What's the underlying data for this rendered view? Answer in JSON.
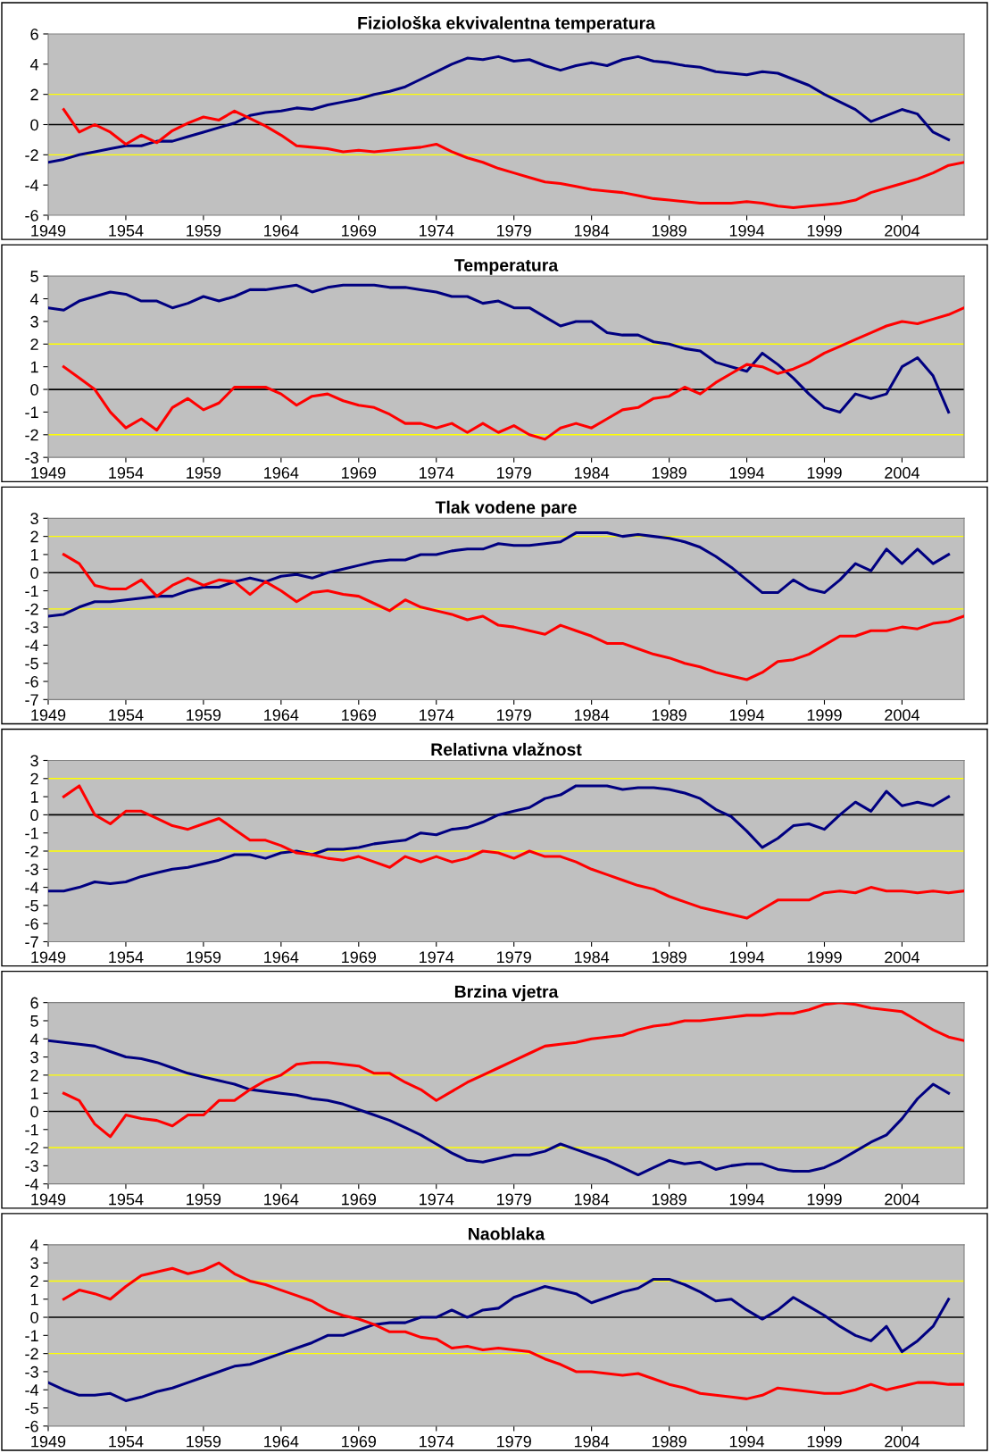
{
  "chart_data": [
    {
      "type": "line",
      "title": "Fiziološka ekvivalentna temperatura",
      "x": [
        1949,
        1950,
        1951,
        1952,
        1953,
        1954,
        1955,
        1956,
        1957,
        1958,
        1959,
        1960,
        1961,
        1962,
        1963,
        1964,
        1965,
        1966,
        1967,
        1968,
        1969,
        1970,
        1971,
        1972,
        1973,
        1974,
        1975,
        1976,
        1977,
        1978,
        1979,
        1980,
        1981,
        1982,
        1983,
        1984,
        1985,
        1986,
        1987,
        1988,
        1989,
        1990,
        1991,
        1992,
        1993,
        1994,
        1995,
        1996,
        1997,
        1998,
        1999,
        2000,
        2001,
        2002,
        2003,
        2004,
        2005,
        2006,
        2007,
        2008
      ],
      "xlim": [
        1949,
        2008
      ],
      "xticks": [
        1949,
        1954,
        1959,
        1964,
        1969,
        1974,
        1979,
        1984,
        1989,
        1994,
        1999,
        2004
      ],
      "ylim": [
        -6,
        6
      ],
      "yticks": [
        -6,
        -4,
        -2,
        0,
        2,
        4,
        6
      ],
      "ref_lines": [
        {
          "axis": "y",
          "value": 2,
          "color": "#ffff00"
        },
        {
          "axis": "y",
          "value": 0,
          "color": "#000000"
        },
        {
          "axis": "y",
          "value": -2,
          "color": "#ffff00"
        }
      ],
      "series": [
        {
          "color": "#000080",
          "values": [
            -2.5,
            -2.3,
            -2.0,
            -1.8,
            -1.6,
            -1.4,
            -1.4,
            -1.1,
            -1.1,
            -0.8,
            -0.5,
            -0.2,
            0.1,
            0.6,
            0.8,
            0.9,
            1.1,
            1.0,
            1.3,
            1.5,
            1.7,
            2.0,
            2.2,
            2.5,
            3.0,
            3.5,
            4.0,
            4.4,
            4.3,
            4.5,
            4.2,
            4.3,
            3.9,
            3.6,
            3.9,
            4.1,
            3.9,
            4.3,
            4.5,
            4.2,
            4.1,
            3.9,
            3.8,
            3.5,
            3.4,
            3.3,
            3.5,
            3.4,
            3.0,
            2.6,
            2.0,
            1.5,
            1.0,
            0.2,
            0.6,
            1.0,
            0.7,
            -0.5,
            -1.0,
            null
          ]
        },
        {
          "color": "#ff0000",
          "values": [
            null,
            1.0,
            -0.5,
            0.0,
            -0.5,
            -1.3,
            -0.7,
            -1.2,
            -0.4,
            0.1,
            0.5,
            0.3,
            0.9,
            0.4,
            -0.1,
            -0.7,
            -1.4,
            -1.5,
            -1.6,
            -1.8,
            -1.7,
            -1.8,
            -1.7,
            -1.6,
            -1.5,
            -1.3,
            -1.8,
            -2.2,
            -2.5,
            -2.9,
            -3.2,
            -3.5,
            -3.8,
            -3.9,
            -4.1,
            -4.3,
            -4.4,
            -4.5,
            -4.7,
            -4.9,
            -5.0,
            -5.1,
            -5.2,
            -5.2,
            -5.2,
            -5.1,
            -5.2,
            -5.4,
            -5.5,
            -5.4,
            -5.3,
            -5.2,
            -5.0,
            -4.5,
            -4.2,
            -3.9,
            -3.6,
            -3.2,
            -2.7,
            -2.5
          ]
        }
      ]
    },
    {
      "type": "line",
      "title": "Temperatura",
      "x": [
        1949,
        1950,
        1951,
        1952,
        1953,
        1954,
        1955,
        1956,
        1957,
        1958,
        1959,
        1960,
        1961,
        1962,
        1963,
        1964,
        1965,
        1966,
        1967,
        1968,
        1969,
        1970,
        1971,
        1972,
        1973,
        1974,
        1975,
        1976,
        1977,
        1978,
        1979,
        1980,
        1981,
        1982,
        1983,
        1984,
        1985,
        1986,
        1987,
        1988,
        1989,
        1990,
        1991,
        1992,
        1993,
        1994,
        1995,
        1996,
        1997,
        1998,
        1999,
        2000,
        2001,
        2002,
        2003,
        2004,
        2005,
        2006,
        2007,
        2008
      ],
      "xlim": [
        1949,
        2008
      ],
      "xticks": [
        1949,
        1954,
        1959,
        1964,
        1969,
        1974,
        1979,
        1984,
        1989,
        1994,
        1999,
        2004
      ],
      "ylim": [
        -3,
        5
      ],
      "yticks": [
        -3,
        -2,
        -1,
        0,
        1,
        2,
        3,
        4,
        5
      ],
      "ref_lines": [
        {
          "axis": "y",
          "value": 2,
          "color": "#ffff00"
        },
        {
          "axis": "y",
          "value": 0,
          "color": "#000000"
        },
        {
          "axis": "y",
          "value": -2,
          "color": "#ffff00"
        }
      ],
      "series": [
        {
          "color": "#000080",
          "values": [
            3.6,
            3.5,
            3.9,
            4.1,
            4.3,
            4.2,
            3.9,
            3.9,
            3.6,
            3.8,
            4.1,
            3.9,
            4.1,
            4.4,
            4.4,
            4.5,
            4.6,
            4.3,
            4.5,
            4.6,
            4.6,
            4.6,
            4.5,
            4.5,
            4.4,
            4.3,
            4.1,
            4.1,
            3.8,
            3.9,
            3.6,
            3.6,
            3.2,
            2.8,
            3.0,
            3.0,
            2.5,
            2.4,
            2.4,
            2.1,
            2.0,
            1.8,
            1.7,
            1.2,
            1.0,
            0.8,
            1.6,
            1.1,
            0.5,
            -0.2,
            -0.8,
            -1.0,
            -0.2,
            -0.4,
            -0.2,
            1.0,
            1.4,
            0.6,
            -1.0,
            null
          ]
        },
        {
          "color": "#ff0000",
          "values": [
            null,
            1.0,
            0.5,
            0.0,
            -1.0,
            -1.7,
            -1.3,
            -1.8,
            -0.8,
            -0.4,
            -0.9,
            -0.6,
            0.1,
            0.1,
            0.1,
            -0.2,
            -0.7,
            -0.3,
            -0.2,
            -0.5,
            -0.7,
            -0.8,
            -1.1,
            -1.5,
            -1.5,
            -1.7,
            -1.5,
            -1.9,
            -1.5,
            -1.9,
            -1.6,
            -2.0,
            -2.2,
            -1.7,
            -1.5,
            -1.7,
            -1.3,
            -0.9,
            -0.8,
            -0.4,
            -0.3,
            0.1,
            -0.2,
            0.3,
            0.7,
            1.1,
            1.0,
            0.7,
            0.9,
            1.2,
            1.6,
            1.9,
            2.2,
            2.5,
            2.8,
            3.0,
            2.9,
            3.1,
            3.3,
            3.6
          ]
        }
      ]
    },
    {
      "type": "line",
      "title": "Tlak vodene pare",
      "x": [
        1949,
        1950,
        1951,
        1952,
        1953,
        1954,
        1955,
        1956,
        1957,
        1958,
        1959,
        1960,
        1961,
        1962,
        1963,
        1964,
        1965,
        1966,
        1967,
        1968,
        1969,
        1970,
        1971,
        1972,
        1973,
        1974,
        1975,
        1976,
        1977,
        1978,
        1979,
        1980,
        1981,
        1982,
        1983,
        1984,
        1985,
        1986,
        1987,
        1988,
        1989,
        1990,
        1991,
        1992,
        1993,
        1994,
        1995,
        1996,
        1997,
        1998,
        1999,
        2000,
        2001,
        2002,
        2003,
        2004,
        2005,
        2006,
        2007,
        2008
      ],
      "xlim": [
        1949,
        2008
      ],
      "xticks": [
        1949,
        1954,
        1959,
        1964,
        1969,
        1974,
        1979,
        1984,
        1989,
        1994,
        1999,
        2004
      ],
      "ylim": [
        -7,
        3
      ],
      "yticks": [
        -7,
        -6,
        -5,
        -4,
        -3,
        -2,
        -1,
        0,
        1,
        2,
        3
      ],
      "ref_lines": [
        {
          "axis": "y",
          "value": 2,
          "color": "#ffff00"
        },
        {
          "axis": "y",
          "value": 0,
          "color": "#000000"
        },
        {
          "axis": "y",
          "value": -2,
          "color": "#ffff00"
        }
      ],
      "series": [
        {
          "color": "#000080",
          "values": [
            -2.4,
            -2.3,
            -1.9,
            -1.6,
            -1.6,
            -1.5,
            -1.4,
            -1.3,
            -1.3,
            -1.0,
            -0.8,
            -0.8,
            -0.5,
            -0.3,
            -0.5,
            -0.2,
            -0.1,
            -0.3,
            0.0,
            0.2,
            0.4,
            0.6,
            0.7,
            0.7,
            1.0,
            1.0,
            1.2,
            1.3,
            1.3,
            1.6,
            1.5,
            1.5,
            1.6,
            1.7,
            2.2,
            2.2,
            2.2,
            2.0,
            2.1,
            2.0,
            1.9,
            1.7,
            1.4,
            0.9,
            0.3,
            -0.4,
            -1.1,
            -1.1,
            -0.4,
            -0.9,
            -1.1,
            -0.4,
            0.5,
            0.1,
            1.3,
            0.5,
            1.3,
            0.5,
            1.0,
            null
          ]
        },
        {
          "color": "#ff0000",
          "values": [
            null,
            1.0,
            0.5,
            -0.7,
            -0.9,
            -0.9,
            -0.4,
            -1.3,
            -0.7,
            -0.3,
            -0.7,
            -0.4,
            -0.5,
            -1.2,
            -0.5,
            -1.0,
            -1.6,
            -1.1,
            -1.0,
            -1.2,
            -1.3,
            -1.7,
            -2.1,
            -1.5,
            -1.9,
            -2.1,
            -2.3,
            -2.6,
            -2.4,
            -2.9,
            -3.0,
            -3.2,
            -3.4,
            -2.9,
            -3.2,
            -3.5,
            -3.9,
            -3.9,
            -4.2,
            -4.5,
            -4.7,
            -5.0,
            -5.2,
            -5.5,
            -5.7,
            -5.9,
            -5.5,
            -4.9,
            -4.8,
            -4.5,
            -4.0,
            -3.5,
            -3.5,
            -3.2,
            -3.2,
            -3.0,
            -3.1,
            -2.8,
            -2.7,
            -2.4
          ]
        }
      ]
    },
    {
      "type": "line",
      "title": "Relativna vlažnost",
      "x": [
        1949,
        1950,
        1951,
        1952,
        1953,
        1954,
        1955,
        1956,
        1957,
        1958,
        1959,
        1960,
        1961,
        1962,
        1963,
        1964,
        1965,
        1966,
        1967,
        1968,
        1969,
        1970,
        1971,
        1972,
        1973,
        1974,
        1975,
        1976,
        1977,
        1978,
        1979,
        1980,
        1981,
        1982,
        1983,
        1984,
        1985,
        1986,
        1987,
        1988,
        1989,
        1990,
        1991,
        1992,
        1993,
        1994,
        1995,
        1996,
        1997,
        1998,
        1999,
        2000,
        2001,
        2002,
        2003,
        2004,
        2005,
        2006,
        2007,
        2008
      ],
      "xlim": [
        1949,
        2008
      ],
      "xticks": [
        1949,
        1954,
        1959,
        1964,
        1969,
        1974,
        1979,
        1984,
        1989,
        1994,
        1999,
        2004
      ],
      "ylim": [
        -7,
        3
      ],
      "yticks": [
        -7,
        -6,
        -5,
        -4,
        -3,
        -2,
        -1,
        0,
        1,
        2,
        3
      ],
      "ref_lines": [
        {
          "axis": "y",
          "value": 2,
          "color": "#ffff00"
        },
        {
          "axis": "y",
          "value": 0,
          "color": "#000000"
        },
        {
          "axis": "y",
          "value": -2,
          "color": "#ffff00"
        }
      ],
      "series": [
        {
          "color": "#000080",
          "values": [
            -4.2,
            -4.2,
            -4.0,
            -3.7,
            -3.8,
            -3.7,
            -3.4,
            -3.2,
            -3.0,
            -2.9,
            -2.7,
            -2.5,
            -2.2,
            -2.2,
            -2.4,
            -2.1,
            -2.0,
            -2.2,
            -1.9,
            -1.9,
            -1.8,
            -1.6,
            -1.5,
            -1.4,
            -1.0,
            -1.1,
            -0.8,
            -0.7,
            -0.4,
            0.0,
            0.2,
            0.4,
            0.9,
            1.1,
            1.6,
            1.6,
            1.6,
            1.4,
            1.5,
            1.5,
            1.4,
            1.2,
            0.9,
            0.3,
            -0.1,
            -0.9,
            -1.8,
            -1.3,
            -0.6,
            -0.5,
            -0.8,
            0.0,
            0.7,
            0.2,
            1.3,
            0.5,
            0.7,
            0.5,
            1.0,
            null
          ]
        },
        {
          "color": "#ff0000",
          "values": [
            null,
            1.0,
            1.6,
            0.0,
            -0.5,
            0.2,
            0.2,
            -0.2,
            -0.6,
            -0.8,
            -0.5,
            -0.2,
            -0.8,
            -1.4,
            -1.4,
            -1.7,
            -2.1,
            -2.2,
            -2.4,
            -2.5,
            -2.3,
            -2.6,
            -2.9,
            -2.3,
            -2.6,
            -2.3,
            -2.6,
            -2.4,
            -2.0,
            -2.1,
            -2.4,
            -2.0,
            -2.3,
            -2.3,
            -2.6,
            -3.0,
            -3.3,
            -3.6,
            -3.9,
            -4.1,
            -4.5,
            -4.8,
            -5.1,
            -5.3,
            -5.5,
            -5.7,
            -5.2,
            -4.7,
            -4.7,
            -4.7,
            -4.3,
            -4.2,
            -4.3,
            -4.0,
            -4.2,
            -4.2,
            -4.3,
            -4.2,
            -4.3,
            -4.2
          ]
        }
      ]
    },
    {
      "type": "line",
      "title": "Brzina vjetra",
      "x": [
        1949,
        1950,
        1951,
        1952,
        1953,
        1954,
        1955,
        1956,
        1957,
        1958,
        1959,
        1960,
        1961,
        1962,
        1963,
        1964,
        1965,
        1966,
        1967,
        1968,
        1969,
        1970,
        1971,
        1972,
        1973,
        1974,
        1975,
        1976,
        1977,
        1978,
        1979,
        1980,
        1981,
        1982,
        1983,
        1984,
        1985,
        1986,
        1987,
        1988,
        1989,
        1990,
        1991,
        1992,
        1993,
        1994,
        1995,
        1996,
        1997,
        1998,
        1999,
        2000,
        2001,
        2002,
        2003,
        2004,
        2005,
        2006,
        2007,
        2008
      ],
      "xlim": [
        1949,
        2008
      ],
      "xticks": [
        1949,
        1954,
        1959,
        1964,
        1969,
        1974,
        1979,
        1984,
        1989,
        1994,
        1999,
        2004
      ],
      "ylim": [
        -4,
        6
      ],
      "yticks": [
        -4,
        -3,
        -2,
        -1,
        0,
        1,
        2,
        3,
        4,
        5,
        6
      ],
      "ref_lines": [
        {
          "axis": "y",
          "value": 2,
          "color": "#ffff00"
        },
        {
          "axis": "y",
          "value": 0,
          "color": "#000000"
        },
        {
          "axis": "y",
          "value": -2,
          "color": "#ffff00"
        }
      ],
      "series": [
        {
          "color": "#000080",
          "values": [
            3.9,
            3.8,
            3.7,
            3.6,
            3.3,
            3.0,
            2.9,
            2.7,
            2.4,
            2.1,
            1.9,
            1.7,
            1.5,
            1.2,
            1.1,
            1.0,
            0.9,
            0.7,
            0.6,
            0.4,
            0.1,
            -0.2,
            -0.5,
            -0.9,
            -1.3,
            -1.8,
            -2.3,
            -2.7,
            -2.8,
            -2.6,
            -2.4,
            -2.4,
            -2.2,
            -1.8,
            -2.1,
            -2.4,
            -2.7,
            -3.1,
            -3.5,
            -3.1,
            -2.7,
            -2.9,
            -2.8,
            -3.2,
            -3.0,
            -2.9,
            -2.9,
            -3.2,
            -3.3,
            -3.3,
            -3.1,
            -2.7,
            -2.2,
            -1.7,
            -1.3,
            -0.4,
            0.7,
            1.5,
            1.0,
            null
          ]
        },
        {
          "color": "#ff0000",
          "values": [
            null,
            1.0,
            0.6,
            -0.7,
            -1.4,
            -0.2,
            -0.4,
            -0.5,
            -0.8,
            -0.2,
            -0.2,
            0.6,
            0.6,
            1.2,
            1.7,
            2.0,
            2.6,
            2.7,
            2.7,
            2.6,
            2.5,
            2.1,
            2.1,
            1.6,
            1.2,
            0.6,
            1.1,
            1.6,
            2.0,
            2.4,
            2.8,
            3.2,
            3.6,
            3.7,
            3.8,
            4.0,
            4.1,
            4.2,
            4.5,
            4.7,
            4.8,
            5.0,
            5.0,
            5.1,
            5.2,
            5.3,
            5.3,
            5.4,
            5.4,
            5.6,
            5.9,
            6.0,
            5.9,
            5.7,
            5.6,
            5.5,
            5.0,
            4.5,
            4.1,
            3.9
          ]
        }
      ]
    },
    {
      "type": "line",
      "title": "Naoblaka",
      "x": [
        1949,
        1950,
        1951,
        1952,
        1953,
        1954,
        1955,
        1956,
        1957,
        1958,
        1959,
        1960,
        1961,
        1962,
        1963,
        1964,
        1965,
        1966,
        1967,
        1968,
        1969,
        1970,
        1971,
        1972,
        1973,
        1974,
        1975,
        1976,
        1977,
        1978,
        1979,
        1980,
        1981,
        1982,
        1983,
        1984,
        1985,
        1986,
        1987,
        1988,
        1989,
        1990,
        1991,
        1992,
        1993,
        1994,
        1995,
        1996,
        1997,
        1998,
        1999,
        2000,
        2001,
        2002,
        2003,
        2004,
        2005,
        2006,
        2007,
        2008
      ],
      "xlim": [
        1949,
        2008
      ],
      "xticks": [
        1949,
        1954,
        1959,
        1964,
        1969,
        1974,
        1979,
        1984,
        1989,
        1994,
        1999,
        2004
      ],
      "ylim": [
        -6,
        4
      ],
      "yticks": [
        -6,
        -5,
        -4,
        -3,
        -2,
        -1,
        0,
        1,
        2,
        3,
        4
      ],
      "ref_lines": [
        {
          "axis": "y",
          "value": 2,
          "color": "#ffff00"
        },
        {
          "axis": "y",
          "value": 0,
          "color": "#000000"
        },
        {
          "axis": "y",
          "value": -2,
          "color": "#ffff00"
        }
      ],
      "series": [
        {
          "color": "#000080",
          "values": [
            -3.6,
            -4.0,
            -4.3,
            -4.3,
            -4.2,
            -4.6,
            -4.4,
            -4.1,
            -3.9,
            -3.6,
            -3.3,
            -3.0,
            -2.7,
            -2.6,
            -2.3,
            -2.0,
            -1.7,
            -1.4,
            -1.0,
            -1.0,
            -0.7,
            -0.4,
            -0.3,
            -0.3,
            0.0,
            0.0,
            0.4,
            0.0,
            0.4,
            0.5,
            1.1,
            1.4,
            1.7,
            1.5,
            1.3,
            0.8,
            1.1,
            1.4,
            1.6,
            2.1,
            2.1,
            1.8,
            1.4,
            0.9,
            1.0,
            0.4,
            -0.1,
            0.4,
            1.1,
            0.6,
            0.1,
            -0.5,
            -1.0,
            -1.3,
            -0.5,
            -1.9,
            -1.3,
            -0.5,
            1.0,
            null
          ]
        },
        {
          "color": "#ff0000",
          "values": [
            null,
            1.0,
            1.5,
            1.3,
            1.0,
            1.7,
            2.3,
            2.5,
            2.7,
            2.4,
            2.6,
            3.0,
            2.4,
            2.0,
            1.8,
            1.5,
            1.2,
            0.9,
            0.4,
            0.1,
            -0.1,
            -0.4,
            -0.8,
            -0.8,
            -1.1,
            -1.2,
            -1.7,
            -1.6,
            -1.8,
            -1.7,
            -1.8,
            -1.9,
            -2.3,
            -2.6,
            -3.0,
            -3.0,
            -3.1,
            -3.2,
            -3.1,
            -3.4,
            -3.7,
            -3.9,
            -4.2,
            -4.3,
            -4.4,
            -4.5,
            -4.3,
            -3.9,
            -4.0,
            -4.1,
            -4.2,
            -4.2,
            -4.0,
            -3.7,
            -4.0,
            -3.8,
            -3.6,
            -3.6,
            -3.7,
            -3.7
          ]
        }
      ]
    }
  ]
}
